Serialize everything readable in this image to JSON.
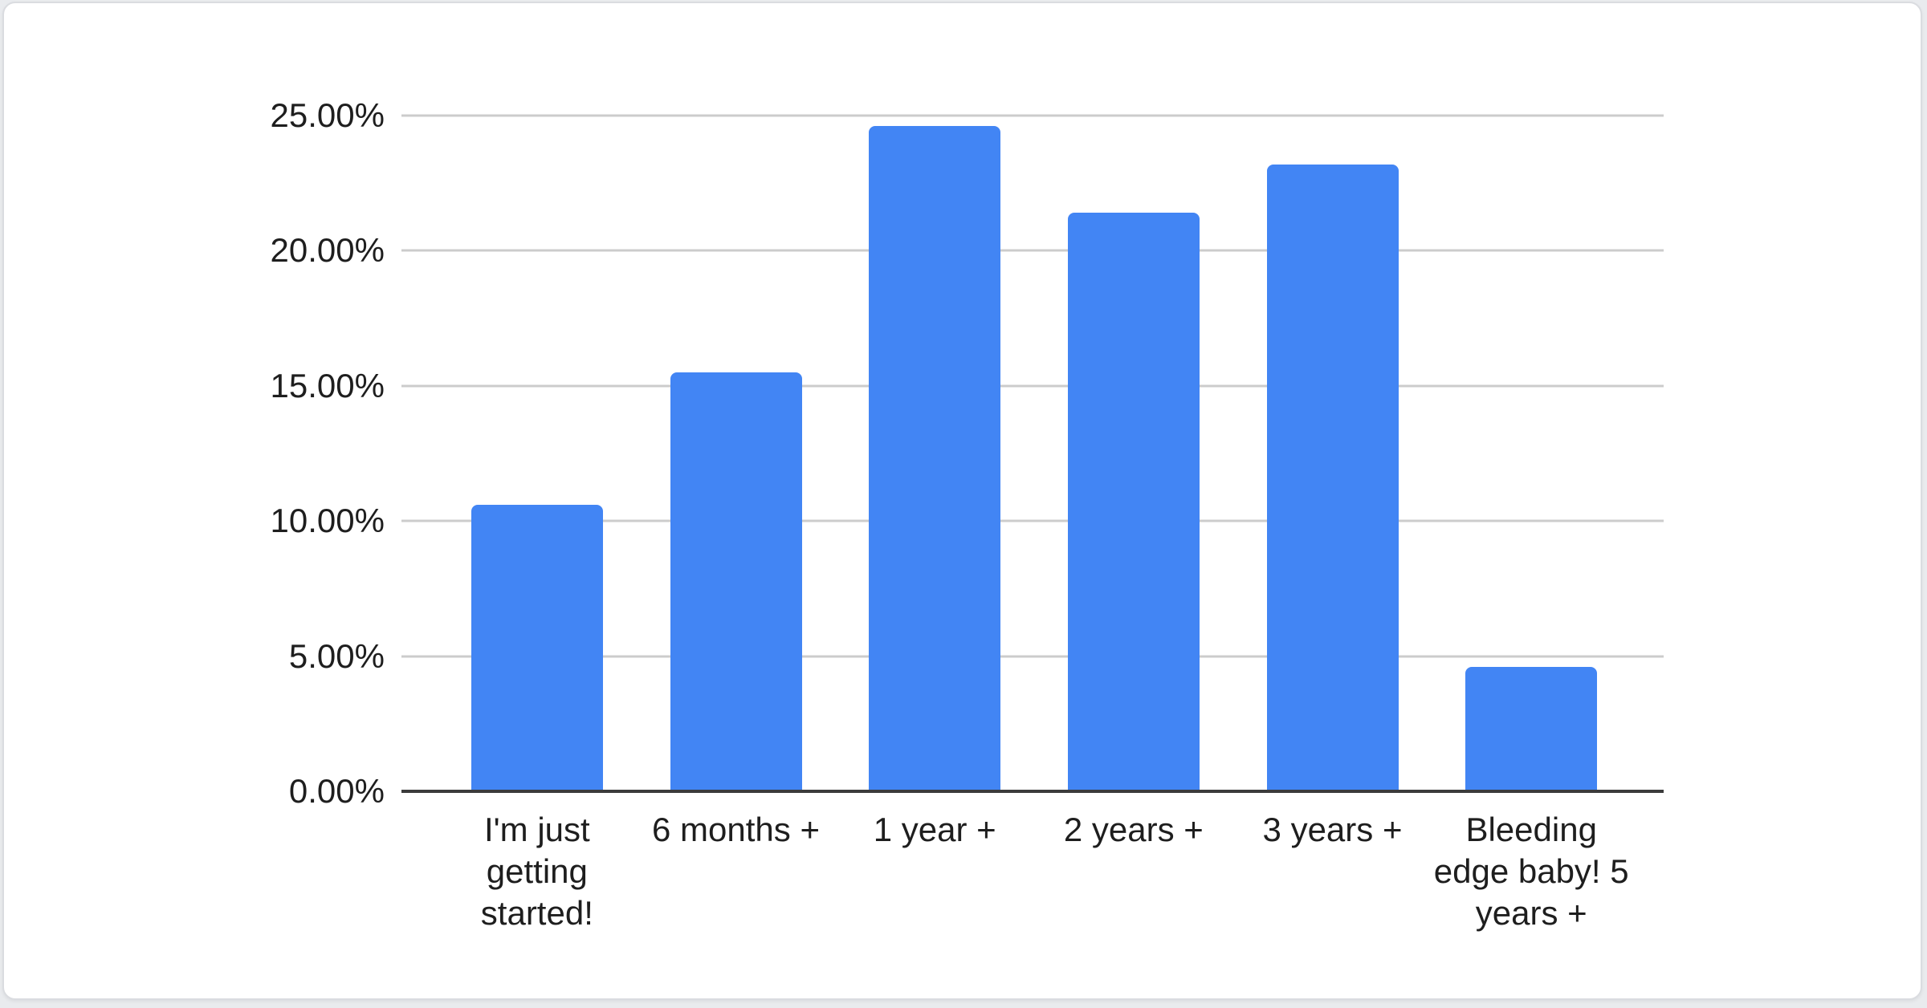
{
  "chart_data": {
    "type": "bar",
    "title": "",
    "categories": [
      "I'm just getting started!",
      "6 months +",
      "1 year +",
      "2 years +",
      "3 years +",
      "Bleeding edge baby! 5 years +"
    ],
    "values": [
      10.6,
      15.5,
      24.6,
      21.4,
      23.2,
      4.6
    ],
    "value_unit": "%",
    "ytick_labels_top_to_bottom": [
      "25.00%",
      "20.00%",
      "15.00%",
      "10.00%",
      "5.00%",
      "0.00%"
    ],
    "ylim": [
      0,
      25
    ],
    "grid": true,
    "legend": "none",
    "xlabel": "",
    "ylabel": "",
    "colors": {
      "bar": "#4285f4",
      "gridline": "#cccccc",
      "axis": "#3b3b3b",
      "label_text": "#1e1e1e",
      "card_background": "#ffffff",
      "page_background": "#e9ebee"
    }
  }
}
